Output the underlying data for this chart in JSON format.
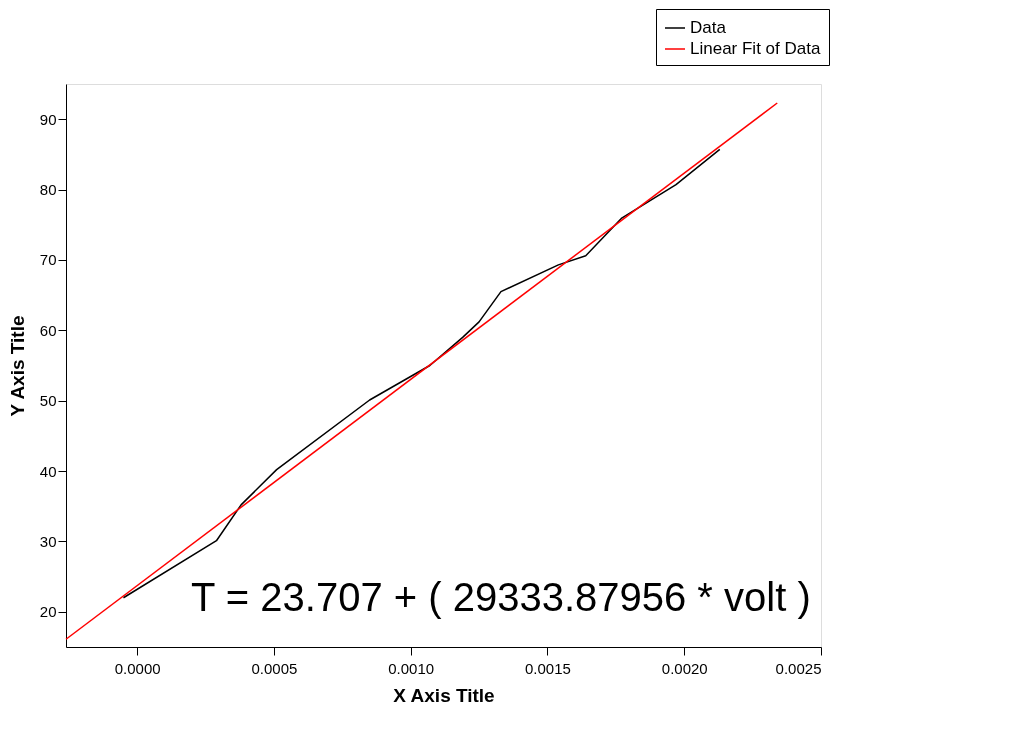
{
  "chart_data": {
    "type": "line",
    "xlabel": "X Axis Title",
    "ylabel": "Y Axis Title",
    "annotations": [
      "T = 23.707 + ( 29333.87956 * volt )"
    ],
    "series": [
      {
        "name": "Data",
        "color": "#000000",
        "x": [
          -5e-05,
          0.00029,
          0.00038,
          0.00051,
          0.00085,
          0.00107,
          0.00119,
          0.00125,
          0.00133,
          0.00154,
          0.00164,
          0.00177,
          0.00197,
          0.00213
        ],
        "values": [
          22.0,
          30.1,
          35.2,
          40.2,
          50.1,
          55.0,
          59.0,
          61.2,
          65.5,
          69.3,
          70.6,
          75.9,
          80.7,
          85.7
        ]
      },
      {
        "name": "Linear Fit of Data",
        "color": "#ff0000",
        "x": [
          -0.00026,
          0.00234
        ],
        "values": [
          16.1,
          92.3
        ]
      }
    ],
    "xlim": [
      -0.00026,
      0.0025
    ],
    "xticks": [
      {
        "value": 0,
        "label": "0.0000"
      },
      0.0005,
      {
        "value": 0.001,
        "label": "0.0010"
      },
      0.0015,
      {
        "value": 0.002,
        "label": "0.0020"
      },
      0.0025
    ],
    "ylim": [
      15,
      95
    ],
    "yticks": [
      20,
      30,
      40,
      50,
      60,
      70,
      80,
      90
    ],
    "grid": false,
    "legend": "top right",
    "marker": "none",
    "line_style": "solid"
  }
}
